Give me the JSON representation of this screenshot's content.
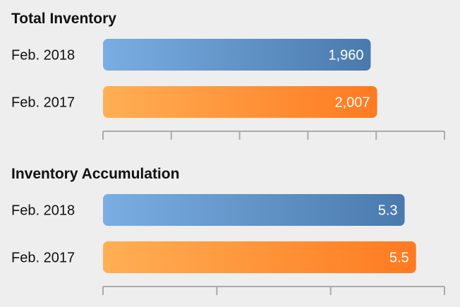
{
  "colors": {
    "series_2018_start": "#7aaee2",
    "series_2018_end": "#4a7aad",
    "series_2017_start": "#ffaf55",
    "series_2017_end": "#ff7a20",
    "axis": "#aaaaaa",
    "label_text": "#111111",
    "value_text": "#ffffff",
    "background": "#eeeeee"
  },
  "chart_data": [
    {
      "type": "bar",
      "orientation": "horizontal",
      "title": "Total Inventory",
      "categories": [
        "Feb. 2018",
        "Feb. 2017"
      ],
      "values": [
        1960,
        2007
      ],
      "value_labels": [
        "1,960",
        "2,007"
      ],
      "xlim": [
        0,
        2500
      ],
      "grid": false,
      "tick_marks": 6
    },
    {
      "type": "bar",
      "orientation": "horizontal",
      "title": "Inventory Accumulation",
      "categories": [
        "Feb. 2018",
        "Feb. 2017"
      ],
      "values": [
        5.3,
        5.5
      ],
      "value_labels": [
        "5.3",
        "5.5"
      ],
      "xlim": [
        0,
        6
      ],
      "grid": false,
      "tick_marks": 4
    }
  ]
}
